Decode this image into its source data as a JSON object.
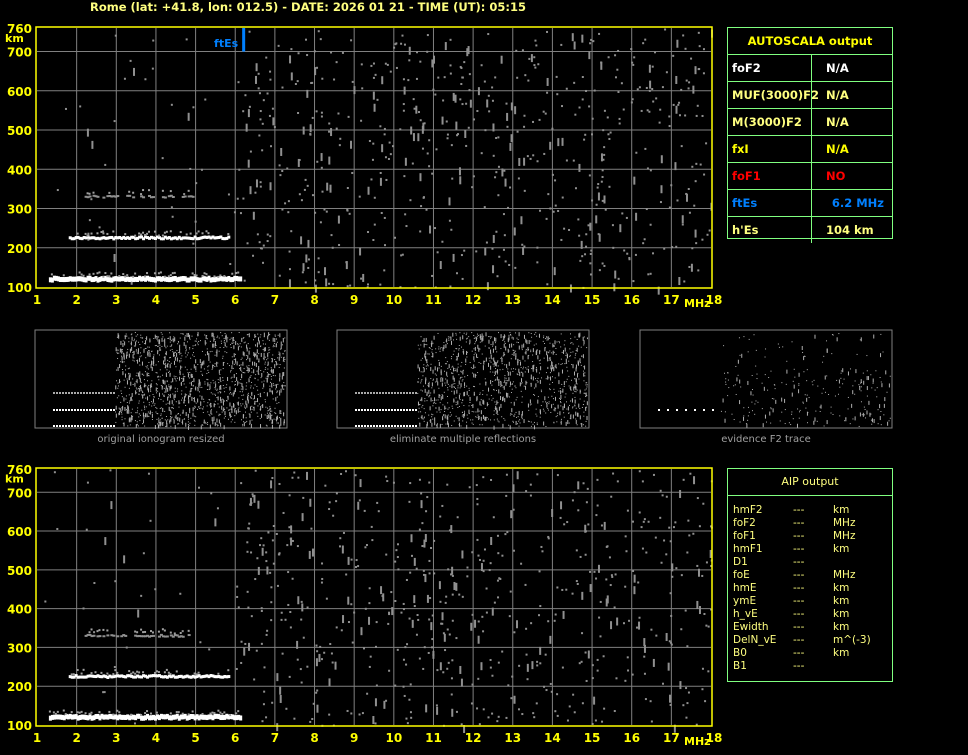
{
  "header": {
    "title": "Rome (lat: +41.8, lon: 012.5) - DATE: 2026 01 21 - TIME (UT): 05:15"
  },
  "ionogram": {
    "x_ticks": [
      "1",
      "2",
      "3",
      "4",
      "5",
      "6",
      "7",
      "8",
      "9",
      "10",
      "11",
      "12",
      "13",
      "14",
      "15",
      "16",
      "17",
      "18"
    ],
    "x_unit": "MHz",
    "y_unit": "km",
    "y_ticks": [
      "760",
      "700",
      "600",
      "500",
      "400",
      "300",
      "200",
      "100"
    ],
    "ftEs_marker": {
      "label": "ftEs",
      "freq_mhz": 6.2,
      "color": "#0080ff"
    },
    "axis_color": "#ffff00",
    "grid_color": "#808080"
  },
  "autoscala": {
    "title": "AUTOSCALA output",
    "rows": [
      {
        "label": "foF2",
        "value": "N/A",
        "color": "#ffffff",
        "value_color": "#ffffff"
      },
      {
        "label": "MUF(3000)F2",
        "value": "N/A",
        "color": "#ffff80",
        "value_color": "#ffff80"
      },
      {
        "label": "M(3000)F2",
        "value": "N/A",
        "color": "#ffff80",
        "value_color": "#ffff80"
      },
      {
        "label": "fxI",
        "value": "N/A",
        "color": "#ffff00",
        "value_color": "#ffff00"
      },
      {
        "label": "foF1",
        "value": "NO",
        "color": "#ff0000",
        "value_color": "#ff0000"
      },
      {
        "label": "ftEs",
        "value": "6.2 MHz",
        "color": "#0080ff",
        "value_color": "#0080ff"
      },
      {
        "label": "h'Es",
        "value": "104      km",
        "color": "#ffff80",
        "value_color": "#ffff80"
      }
    ]
  },
  "thumbnails": [
    "original ionogram resized",
    "eliminate multiple reflections",
    "evidence F2 trace"
  ],
  "aip": {
    "title": "AIP output",
    "rows": [
      {
        "label": "hmF2",
        "value": "---",
        "unit": "km"
      },
      {
        "label": "foF2",
        "value": "---",
        "unit": "MHz"
      },
      {
        "label": "foF1",
        "value": "---",
        "unit": "MHz"
      },
      {
        "label": "hmF1",
        "value": "---",
        "unit": "km"
      },
      {
        "label": "D1",
        "value": "---",
        "unit": ""
      },
      {
        "label": "foE",
        "value": "---",
        "unit": "MHz"
      },
      {
        "label": "hmE",
        "value": "---",
        "unit": "km"
      },
      {
        "label": "ymE",
        "value": "---",
        "unit": "km"
      },
      {
        "label": "h_vE",
        "value": "---",
        "unit": "km"
      },
      {
        "label": "Ewidth",
        "value": "---",
        "unit": "km"
      },
      {
        "label": "DelN_vE",
        "value": "---",
        "unit": "m^(-3)"
      },
      {
        "label": "B0",
        "value": "---",
        "unit": "km"
      },
      {
        "label": "B1",
        "value": "---",
        "unit": ""
      }
    ]
  }
}
